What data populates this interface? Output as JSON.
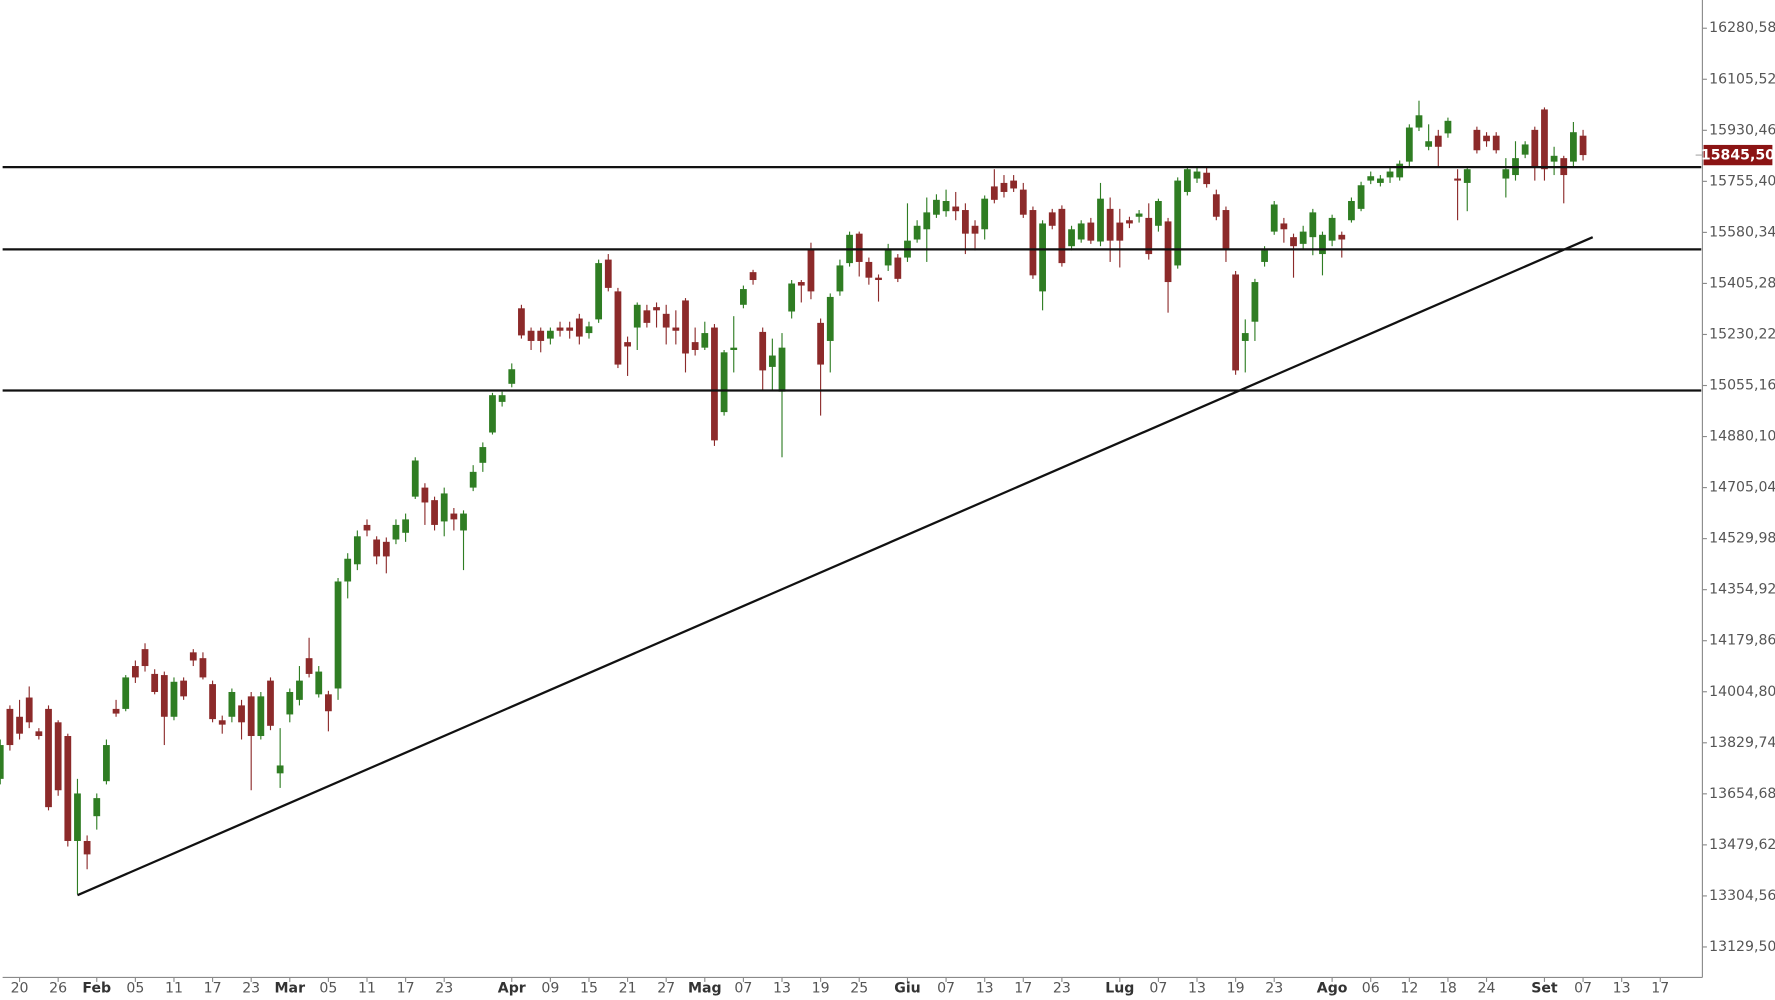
{
  "chart_data": {
    "type": "candlestick",
    "categories": [
      null,
      null,
      "20",
      null,
      null,
      null,
      "26",
      null,
      null,
      null,
      "Feb",
      null,
      null,
      null,
      "05",
      null,
      null,
      null,
      "11",
      null,
      null,
      null,
      "17",
      null,
      null,
      null,
      "23",
      null,
      null,
      null,
      "Mar",
      null,
      null,
      null,
      "05",
      null,
      null,
      null,
      "11",
      null,
      null,
      null,
      "17",
      null,
      null,
      null,
      "23",
      null,
      null,
      null,
      null,
      null,
      null,
      "Apr",
      null,
      null,
      null,
      "09",
      null,
      null,
      null,
      "15",
      null,
      null,
      null,
      "21",
      null,
      null,
      null,
      "27",
      null,
      null,
      null,
      "Mag",
      null,
      null,
      null,
      "07",
      null,
      null,
      null,
      "13",
      null,
      null,
      null,
      "19",
      null,
      null,
      null,
      "25",
      null,
      null,
      null,
      null,
      "Giu",
      null,
      null,
      null,
      "07",
      null,
      null,
      null,
      "13",
      null,
      null,
      null,
      "17",
      null,
      null,
      null,
      "23",
      null,
      null,
      null,
      null,
      null,
      "Lug",
      null,
      null,
      null,
      "07",
      null,
      null,
      null,
      "13",
      null,
      null,
      null,
      "19",
      null,
      null,
      null,
      "23",
      null,
      null,
      null,
      null,
      null,
      "Ago",
      null,
      null,
      null,
      "06",
      null,
      null,
      null,
      "12",
      null,
      null,
      null,
      "18",
      null,
      null,
      null,
      "24",
      null,
      null,
      null,
      null,
      null,
      "Set",
      null,
      null,
      null,
      "07",
      null,
      null,
      null,
      "13",
      null,
      null,
      null,
      "17"
    ],
    "ohlc": [
      [
        13706,
        13841,
        13687,
        13822
      ],
      [
        13946,
        13958,
        13803,
        13822
      ],
      [
        13919,
        13977,
        13841,
        13861
      ],
      [
        13985,
        14023,
        13880,
        13900
      ],
      [
        13869,
        13880,
        13841,
        13853
      ],
      [
        13946,
        13958,
        13598,
        13609
      ],
      [
        13900,
        13907,
        13648,
        13667
      ],
      [
        13853,
        13861,
        13474,
        13493
      ],
      [
        13493,
        13706,
        13311,
        13656
      ],
      [
        13493,
        13512,
        13396,
        13447
      ],
      [
        13578,
        13656,
        13532,
        13640
      ],
      [
        13698,
        13841,
        13687,
        13822
      ],
      [
        13946,
        13977,
        13919,
        13930
      ],
      [
        13946,
        14062,
        13938,
        14054
      ],
      [
        14093,
        14112,
        14035,
        14054
      ],
      [
        14151,
        14171,
        14074,
        14093
      ],
      [
        14066,
        14082,
        13996,
        14004
      ],
      [
        14062,
        14074,
        13822,
        13919
      ],
      [
        13919,
        14054,
        13907,
        14039
      ],
      [
        14043,
        14054,
        13977,
        13989
      ],
      [
        14140,
        14151,
        14093,
        14112
      ],
      [
        14120,
        14140,
        14047,
        14054
      ],
      [
        14031,
        14043,
        13900,
        13911
      ],
      [
        13907,
        13923,
        13861,
        13892
      ],
      [
        13919,
        14016,
        13900,
        14004
      ],
      [
        13958,
        13977,
        13841,
        13900
      ],
      [
        13989,
        14004,
        13667,
        13853
      ],
      [
        13853,
        14004,
        13841,
        13989
      ],
      [
        14043,
        14054,
        13873,
        13888
      ],
      [
        13725,
        13880,
        13675,
        13752
      ],
      [
        13927,
        14016,
        13900,
        14004
      ],
      [
        13977,
        14093,
        13958,
        14043
      ],
      [
        14120,
        14190,
        14054,
        14066
      ],
      [
        13996,
        14093,
        13985,
        14074
      ],
      [
        13996,
        14008,
        13869,
        13938
      ],
      [
        14016,
        14395,
        13977,
        14383
      ],
      [
        14383,
        14480,
        14325,
        14461
      ],
      [
        14442,
        14558,
        14422,
        14538
      ],
      [
        14577,
        14596,
        14538,
        14558
      ],
      [
        14527,
        14538,
        14442,
        14469
      ],
      [
        14519,
        14534,
        14411,
        14469
      ],
      [
        14527,
        14596,
        14511,
        14577
      ],
      [
        14550,
        14616,
        14519,
        14596
      ],
      [
        14674,
        14809,
        14666,
        14798
      ],
      [
        14705,
        14720,
        14577,
        14654
      ],
      [
        14662,
        14674,
        14558,
        14577
      ],
      [
        14589,
        14705,
        14538,
        14685
      ],
      [
        14616,
        14635,
        14558,
        14596
      ],
      [
        14558,
        14627,
        14422,
        14616
      ],
      [
        14705,
        14782,
        14693,
        14759
      ],
      [
        14790,
        14860,
        14759,
        14844
      ],
      [
        14894,
        15030,
        14887,
        15022
      ],
      [
        14999,
        15034,
        14983,
        15022
      ],
      [
        15061,
        15131,
        15049,
        15111
      ],
      [
        15320,
        15332,
        15216,
        15227
      ],
      [
        15243,
        15254,
        15177,
        15208
      ],
      [
        15243,
        15254,
        15169,
        15208
      ],
      [
        15216,
        15254,
        15196,
        15243
      ],
      [
        15254,
        15274,
        15223,
        15243
      ],
      [
        15254,
        15274,
        15216,
        15243
      ],
      [
        15285,
        15301,
        15196,
        15223
      ],
      [
        15235,
        15274,
        15216,
        15258
      ],
      [
        15282,
        15487,
        15270,
        15475
      ],
      [
        15487,
        15506,
        15378,
        15390
      ],
      [
        15378,
        15390,
        15115,
        15127
      ],
      [
        15204,
        15223,
        15088,
        15189
      ],
      [
        15254,
        15340,
        15177,
        15332
      ],
      [
        15313,
        15332,
        15254,
        15270
      ],
      [
        15324,
        15340,
        15254,
        15313
      ],
      [
        15301,
        15332,
        15196,
        15254
      ],
      [
        15254,
        15313,
        15196,
        15243
      ],
      [
        15347,
        15355,
        15100,
        15165
      ],
      [
        15204,
        15254,
        15158,
        15177
      ],
      [
        15185,
        15274,
        15177,
        15235
      ],
      [
        15254,
        15266,
        14848,
        14867
      ],
      [
        14964,
        15177,
        14952,
        15169
      ],
      [
        15177,
        15293,
        15100,
        15185
      ],
      [
        15332,
        15398,
        15320,
        15386
      ],
      [
        15444,
        15452,
        15401,
        15417
      ],
      [
        15239,
        15254,
        15041,
        15107
      ],
      [
        15119,
        15216,
        15041,
        15158
      ],
      [
        15034,
        15235,
        14809,
        15185
      ],
      [
        15309,
        15417,
        15285,
        15405
      ],
      [
        15410,
        15417,
        15340,
        15398
      ],
      [
        15522,
        15545,
        15351,
        15378
      ],
      [
        15270,
        15285,
        14952,
        15127
      ],
      [
        15208,
        15371,
        15100,
        15359
      ],
      [
        15378,
        15487,
        15363,
        15467
      ],
      [
        15475,
        15583,
        15463,
        15572
      ],
      [
        15576,
        15583,
        15429,
        15479
      ],
      [
        15479,
        15494,
        15401,
        15425
      ],
      [
        15425,
        15436,
        15343,
        15417
      ],
      [
        15467,
        15541,
        15448,
        15525
      ],
      [
        15494,
        15506,
        15410,
        15421
      ],
      [
        15494,
        15680,
        15479,
        15552
      ],
      [
        15556,
        15622,
        15545,
        15603
      ],
      [
        15591,
        15700,
        15479,
        15649
      ],
      [
        15641,
        15711,
        15630,
        15692
      ],
      [
        15653,
        15727,
        15634,
        15688
      ],
      [
        15669,
        15719,
        15622,
        15653
      ],
      [
        15657,
        15680,
        15506,
        15576
      ],
      [
        15603,
        15622,
        15518,
        15576
      ],
      [
        15591,
        15707,
        15556,
        15696
      ],
      [
        15738,
        15797,
        15680,
        15692
      ],
      [
        15750,
        15777,
        15700,
        15719
      ],
      [
        15758,
        15777,
        15719,
        15731
      ],
      [
        15727,
        15750,
        15630,
        15641
      ],
      [
        15657,
        15669,
        15421,
        15433
      ],
      [
        15378,
        15622,
        15313,
        15611
      ],
      [
        15649,
        15661,
        15591,
        15603
      ],
      [
        15661,
        15673,
        15463,
        15475
      ],
      [
        15533,
        15603,
        15518,
        15591
      ],
      [
        15556,
        15622,
        15545,
        15611
      ],
      [
        15614,
        15630,
        15541,
        15552
      ],
      [
        15549,
        15750,
        15533,
        15696
      ],
      [
        15661,
        15700,
        15479,
        15552
      ],
      [
        15614,
        15661,
        15460,
        15552
      ],
      [
        15622,
        15634,
        15595,
        15611
      ],
      [
        15634,
        15657,
        15614,
        15645
      ],
      [
        15630,
        15680,
        15487,
        15506
      ],
      [
        15603,
        15696,
        15583,
        15688
      ],
      [
        15618,
        15630,
        15305,
        15410
      ],
      [
        15467,
        15769,
        15456,
        15758
      ],
      [
        15719,
        15808,
        15707,
        15797
      ],
      [
        15765,
        15804,
        15750,
        15789
      ],
      [
        15785,
        15804,
        15734,
        15746
      ],
      [
        15711,
        15727,
        15622,
        15634
      ],
      [
        15657,
        15669,
        15479,
        15525
      ],
      [
        15436,
        15448,
        15092,
        15107
      ],
      [
        15208,
        15282,
        15100,
        15235
      ],
      [
        15274,
        15421,
        15208,
        15410
      ],
      [
        15479,
        15533,
        15463,
        15518
      ],
      [
        15583,
        15688,
        15572,
        15676
      ],
      [
        15611,
        15630,
        15545,
        15591
      ],
      [
        15564,
        15576,
        15425,
        15533
      ],
      [
        15541,
        15603,
        15525,
        15583
      ],
      [
        15564,
        15661,
        15502,
        15649
      ],
      [
        15506,
        15583,
        15433,
        15572
      ],
      [
        15552,
        15641,
        15533,
        15630
      ],
      [
        15572,
        15583,
        15494,
        15556
      ],
      [
        15622,
        15700,
        15614,
        15688
      ],
      [
        15661,
        15754,
        15653,
        15742
      ],
      [
        15758,
        15789,
        15746,
        15773
      ],
      [
        15750,
        15777,
        15738,
        15765
      ],
      [
        15769,
        15804,
        15750,
        15789
      ],
      [
        15769,
        15827,
        15758,
        15816
      ],
      [
        15823,
        15951,
        15808,
        15940
      ],
      [
        15940,
        16032,
        15928,
        15982
      ],
      [
        15874,
        15951,
        15862,
        15893
      ],
      [
        15912,
        15932,
        15804,
        15874
      ],
      [
        15920,
        15974,
        15905,
        15963
      ],
      [
        15765,
        15797,
        15622,
        15758
      ],
      [
        15750,
        15804,
        15653,
        15797
      ],
      [
        15932,
        15943,
        15851,
        15862
      ],
      [
        15912,
        15924,
        15874,
        15893
      ],
      [
        15912,
        15924,
        15851,
        15862
      ],
      [
        15765,
        15835,
        15700,
        15797
      ],
      [
        15777,
        15893,
        15758,
        15835
      ],
      [
        15847,
        15893,
        15835,
        15882
      ],
      [
        15932,
        15943,
        15758,
        15804
      ],
      [
        16002,
        16009,
        15758,
        15797
      ],
      [
        15823,
        15874,
        15777,
        15843
      ],
      [
        15835,
        15843,
        15680,
        15777
      ],
      [
        15823,
        15959,
        15804,
        15924
      ],
      [
        15912,
        15932,
        15827,
        15845.5
      ],
      null,
      null,
      null,
      null,
      null,
      null,
      null,
      null
    ],
    "up_color": "#2f7d23",
    "down_color": "#8c2a2a",
    "levels": [
      15804,
      15522,
      15038
    ],
    "trendline": {
      "x": [
        8,
        165
      ],
      "y": [
        13307,
        15564
      ]
    },
    "last_price": {
      "value": 15845.5,
      "label": "15845,50"
    },
    "ylim": [
      13025,
      16377.4
    ],
    "yticks": [
      {
        "value": 13129.5,
        "label": "13129,50"
      },
      {
        "value": 13304.56,
        "label": "13304,56"
      },
      {
        "value": 13479.62,
        "label": "13479,62"
      },
      {
        "value": 13654.68,
        "label": "13654,68"
      },
      {
        "value": 13829.74,
        "label": "13829,74"
      },
      {
        "value": 14004.8,
        "label": "14004,80"
      },
      {
        "value": 14179.86,
        "label": "14179,86"
      },
      {
        "value": 14354.92,
        "label": "14354,92"
      },
      {
        "value": 14529.98,
        "label": "14529,98"
      },
      {
        "value": 14705.04,
        "label": "14705,04"
      },
      {
        "value": 14880.1,
        "label": "14880,10"
      },
      {
        "value": 15055.16,
        "label": "15055,16"
      },
      {
        "value": 15230.22,
        "label": "15230,22"
      },
      {
        "value": 15405.28,
        "label": "15405,28"
      },
      {
        "value": 15580.34,
        "label": "15580,34"
      },
      {
        "value": 15755.4,
        "label": "15755,40"
      },
      {
        "value": 15930.46,
        "label": "15930,46"
      },
      {
        "value": 16105.52,
        "label": "16105,52"
      },
      {
        "value": 16280.58,
        "label": "16280,58"
      }
    ],
    "grid": false
  }
}
